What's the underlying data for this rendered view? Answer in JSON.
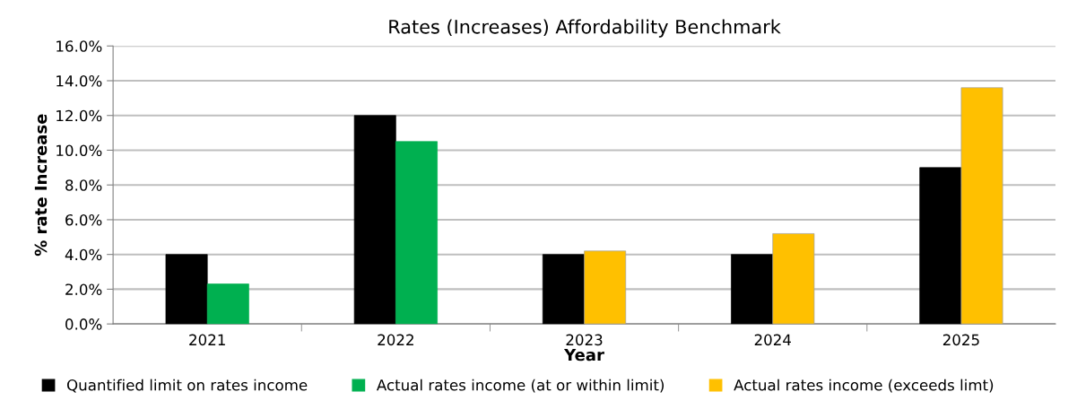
{
  "chart_data": {
    "type": "bar",
    "title": "Rates (Increases) Affordability Benchmark",
    "xlabel": "Year",
    "ylabel": "% rate Increase",
    "categories": [
      "2021",
      "2022",
      "2023",
      "2024",
      "2025"
    ],
    "series": [
      {
        "name": "Quantified limit on rates income",
        "color": "#000000",
        "values": [
          4.0,
          12.0,
          4.0,
          4.0,
          9.0
        ]
      },
      {
        "name": "Actual rates income (at or within limit)",
        "color": "#00b050",
        "values": [
          2.3,
          10.5,
          null,
          null,
          null
        ]
      },
      {
        "name": "Actual rates income (exceeds limt)",
        "color": "#ffc000",
        "values": [
          null,
          null,
          4.2,
          5.2,
          13.6
        ]
      }
    ],
    "ylim": [
      0,
      16
    ],
    "yticks": [
      {
        "value": 0,
        "label": "0.0%"
      },
      {
        "value": 2,
        "label": "2.0%"
      },
      {
        "value": 4,
        "label": "4.0%"
      },
      {
        "value": 6,
        "label": "6.0%"
      },
      {
        "value": 8,
        "label": "8.0%"
      },
      {
        "value": 10,
        "label": "10.0%"
      },
      {
        "value": 12,
        "label": "12.0%"
      },
      {
        "value": 14,
        "label": "14.0%"
      },
      {
        "value": 16,
        "label": "16.0%"
      }
    ],
    "grid": "y",
    "legend": "bottom"
  }
}
